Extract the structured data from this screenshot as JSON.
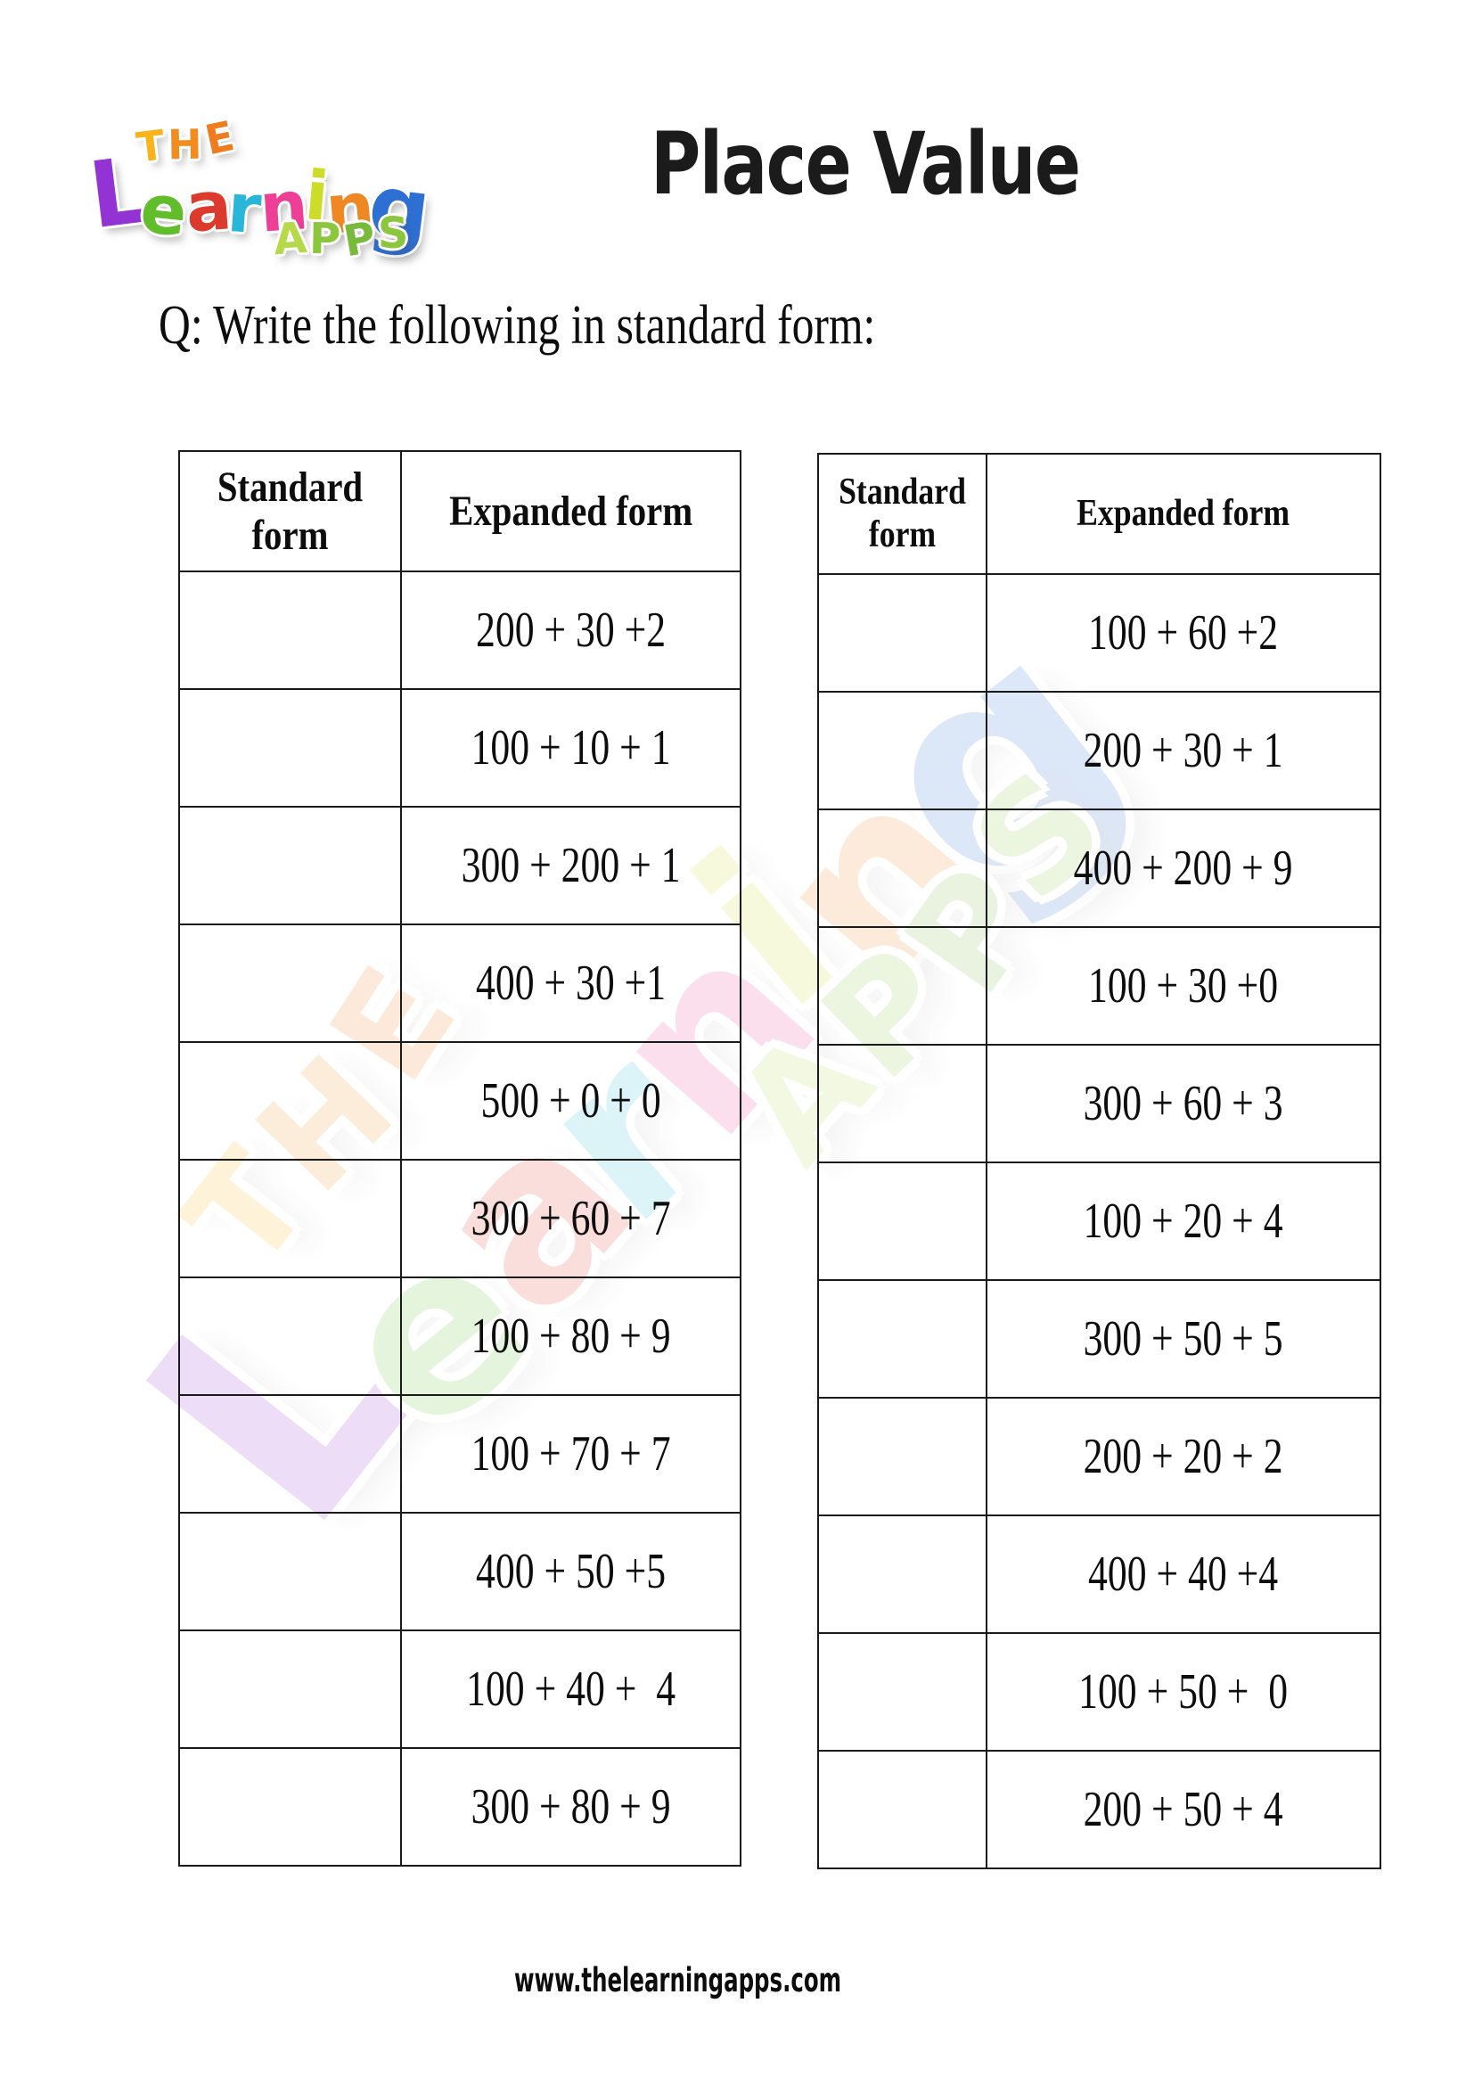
{
  "page": {
    "title": "Place Value",
    "question": "Q: Write the following in standard form:",
    "footer_url": "www.thelearningapps.com"
  },
  "logo": {
    "brand_name": "The Learning Apps",
    "word_top": [
      {
        "ch": "T",
        "color": "#f9b31b"
      },
      {
        "ch": "H",
        "color": "#f28c1e"
      },
      {
        "ch": "E",
        "color": "#ef7d20"
      }
    ],
    "word_main": [
      {
        "ch": "L",
        "color": "#9333d4"
      },
      {
        "ch": "e",
        "color": "#62bd2b"
      },
      {
        "ch": "a",
        "color": "#dd3a2e"
      },
      {
        "ch": "r",
        "color": "#2ab6d9"
      },
      {
        "ch": "n",
        "color": "#ee3f96"
      },
      {
        "ch": "i",
        "color": "#cddc29"
      },
      {
        "ch": "n",
        "color": "#ef8722"
      },
      {
        "ch": "g",
        "color": "#2e6fd3"
      }
    ],
    "word_bottom": [
      {
        "ch": "A",
        "color": "#b5d94b"
      },
      {
        "ch": "P",
        "color": "#8cc63f"
      },
      {
        "ch": "P",
        "color": "#79b93c"
      },
      {
        "ch": "S",
        "color": "#8cc63f"
      }
    ]
  },
  "tables": {
    "left": {
      "headers": [
        "Standard form",
        "Expanded form"
      ],
      "rows": [
        "200 + 30 +2",
        "100 + 10 + 1",
        "300 + 200 + 1",
        "400 + 30 +1",
        "500 + 0 + 0",
        "300 + 60 + 7",
        "100 + 80 + 9",
        "100 + 70 + 7",
        "400 + 50 +5",
        "100 + 40 +  4",
        "300 + 80 + 9"
      ]
    },
    "right": {
      "headers": [
        "Standard form",
        "Expanded form"
      ],
      "rows": [
        "100 + 60 +2",
        "200 + 30 + 1",
        "400 + 200 + 9",
        "100 + 30 +0",
        "300 + 60 + 3",
        "100 + 20 + 4",
        "300 + 50 + 5",
        "200 + 20 + 2",
        "400 + 40 +4",
        "100 + 50 +  0",
        "200 + 50 + 4"
      ]
    }
  }
}
